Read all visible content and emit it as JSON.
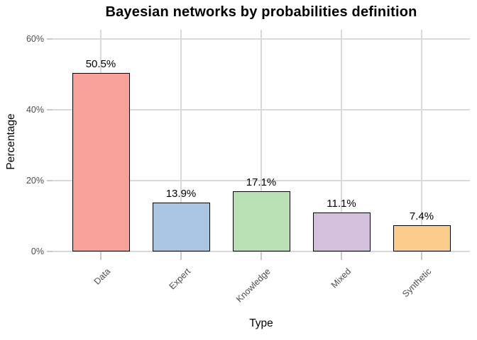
{
  "chart_data": {
    "type": "bar",
    "title": "Bayesian networks by probabilities definition",
    "xlabel": "Type",
    "ylabel": "Percentage",
    "categories": [
      "Data",
      "Expert",
      "Knowledge",
      "Mixed",
      "Synthetic"
    ],
    "values": [
      50.5,
      13.9,
      17.1,
      11.1,
      7.4
    ],
    "bar_labels": [
      "50.5%",
      "13.9%",
      "17.1%",
      "11.1%",
      "7.4%"
    ],
    "bar_colors": [
      "#F8A19A",
      "#A9C5E1",
      "#B9DFB4",
      "#D3C0DC",
      "#FACD8C"
    ],
    "bar_border_color": "#000000",
    "yticks": [
      {
        "value": 0,
        "label": "0%"
      },
      {
        "value": 20,
        "label": "20%"
      },
      {
        "value": 40,
        "label": "40%"
      },
      {
        "value": 60,
        "label": "60%"
      }
    ],
    "ylim": [
      0,
      62.6
    ],
    "grid": true,
    "legend_position": "none",
    "style": {
      "grid_color": "#D9D9D9",
      "tick_color": "#C9C9C9",
      "axis_text_color": "#4D4D4D",
      "value_label_color": "#000000",
      "background_color": "#FFFFFF"
    }
  }
}
